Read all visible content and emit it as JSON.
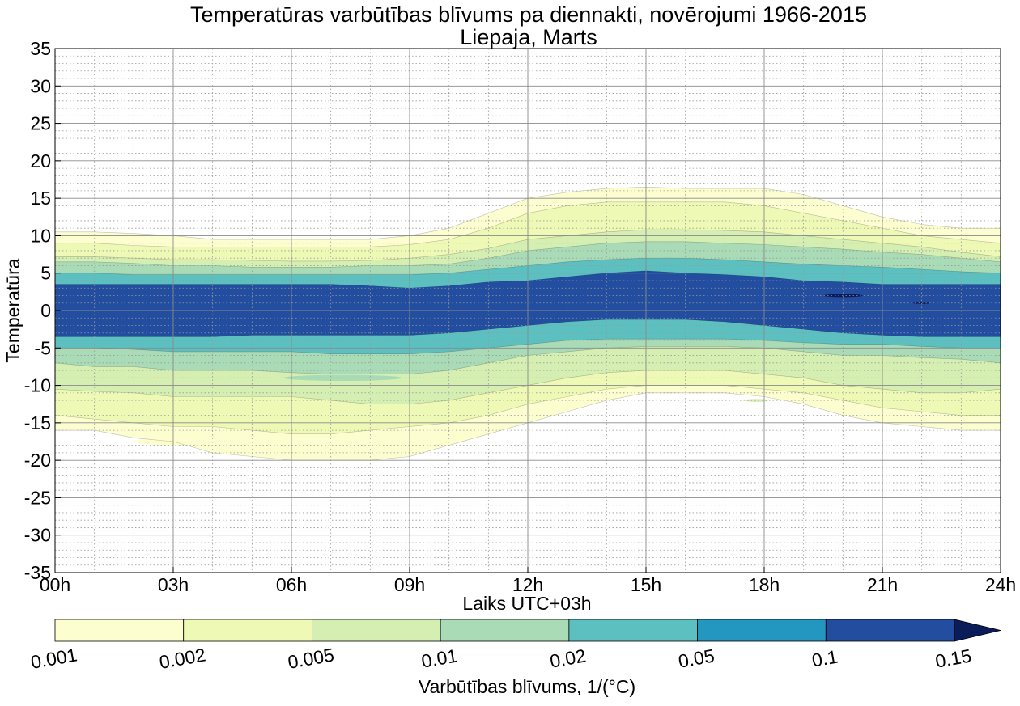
{
  "chart_data": {
    "type": "contour",
    "title": "Temperatūras varbūtības blīvums pa diennakti, novērojumi 1966-2015",
    "subtitle": "Liepaja, Marts",
    "xlabel": "Laiks UTC+03h",
    "ylabel": "Temperatūra",
    "xlim": [
      0,
      24
    ],
    "ylim": [
      -35,
      35
    ],
    "x_ticks": [
      0,
      3,
      6,
      9,
      12,
      15,
      18,
      21,
      24
    ],
    "x_tick_labels": [
      "00h",
      "03h",
      "06h",
      "09h",
      "12h",
      "15h",
      "18h",
      "21h",
      "24h"
    ],
    "y_ticks": [
      -35,
      -30,
      -25,
      -20,
      -15,
      -10,
      -5,
      0,
      5,
      10,
      15,
      20,
      25,
      30,
      35
    ],
    "y_tick_labels": [
      "-35",
      "-30",
      "-25",
      "-20",
      "-15",
      "-10",
      "-5",
      "0",
      "5",
      "10",
      "15",
      "20",
      "25",
      "30",
      "35"
    ],
    "grid": true,
    "colorbar": {
      "label": "Varbūtības blīvums, 1/(°C)",
      "levels": [
        0.001,
        0.002,
        0.005,
        0.01,
        0.02,
        0.05,
        0.1,
        0.15
      ],
      "tick_labels": [
        "0.001",
        "0.002",
        "0.005",
        "0.01",
        "0.02",
        "0.05",
        "0.1",
        "0.15"
      ],
      "colors": [
        "#fdfed0",
        "#eff9b6",
        "#d5eeb2",
        "#a9dbb6",
        "#5cbfc0",
        "#2397c0",
        "#234ea0",
        "#0a1d5a"
      ],
      "extend": "max",
      "placement": "bottom"
    },
    "hours": [
      0,
      1,
      2,
      3,
      4,
      5,
      6,
      7,
      8,
      9,
      10,
      11,
      12,
      13,
      14,
      15,
      16,
      17,
      18,
      19,
      20,
      21,
      22,
      23,
      24
    ],
    "bands": [
      {
        "level": 0.001,
        "upper": [
          10.5,
          10.5,
          10.3,
          10.0,
          9.5,
          9.5,
          9.5,
          9.5,
          9.5,
          10.0,
          11.0,
          13.0,
          15.0,
          15.8,
          16.3,
          16.5,
          16.3,
          16.3,
          16.3,
          15.5,
          14.0,
          12.5,
          11.5,
          11.0,
          11.0
        ],
        "lower": [
          -16.0,
          -16.0,
          -17.0,
          -17.5,
          -19.0,
          -19.5,
          -20.0,
          -20.0,
          -20.0,
          -19.5,
          -18.0,
          -16.5,
          -15.0,
          -13.5,
          -12.0,
          -11.0,
          -11.0,
          -11.0,
          -11.5,
          -12.5,
          -14.0,
          -15.0,
          -15.5,
          -16.0,
          -16.0
        ]
      },
      {
        "level": 0.002,
        "upper": [
          9.0,
          9.0,
          8.7,
          8.5,
          8.5,
          8.5,
          8.5,
          8.5,
          8.5,
          8.8,
          9.5,
          11.0,
          13.0,
          14.0,
          14.5,
          14.5,
          14.5,
          14.5,
          14.0,
          13.0,
          12.0,
          11.0,
          10.0,
          9.5,
          9.0
        ],
        "lower": [
          -14.0,
          -14.5,
          -15.0,
          -15.5,
          -15.5,
          -16.0,
          -16.5,
          -16.5,
          -16.0,
          -15.5,
          -15.0,
          -14.0,
          -12.5,
          -11.5,
          -10.5,
          -10.0,
          -10.0,
          -10.0,
          -10.5,
          -11.0,
          -12.0,
          -13.0,
          -13.5,
          -14.0,
          -14.0
        ]
      },
      {
        "level": 0.005,
        "upper": [
          7.2,
          7.2,
          7.0,
          6.8,
          6.8,
          6.7,
          6.6,
          6.6,
          6.7,
          7.0,
          7.5,
          8.3,
          9.5,
          10.0,
          10.5,
          10.8,
          10.8,
          10.7,
          10.5,
          10.0,
          9.5,
          9.0,
          8.5,
          7.8,
          7.2
        ],
        "lower": [
          -10.5,
          -10.8,
          -11.0,
          -11.5,
          -11.5,
          -11.5,
          -11.5,
          -12.0,
          -12.5,
          -12.5,
          -12.0,
          -11.0,
          -10.0,
          -9.0,
          -8.3,
          -8.0,
          -8.0,
          -8.0,
          -8.5,
          -9.0,
          -10.0,
          -10.5,
          -11.0,
          -11.0,
          -10.5
        ]
      },
      {
        "level": 0.01,
        "upper": [
          6.5,
          6.5,
          6.3,
          6.0,
          6.0,
          5.8,
          5.8,
          5.8,
          6.0,
          6.0,
          6.2,
          7.0,
          8.0,
          8.5,
          9.0,
          9.2,
          9.2,
          9.0,
          8.8,
          8.5,
          8.2,
          7.8,
          7.5,
          7.0,
          6.5
        ],
        "lower": [
          -7.0,
          -7.5,
          -7.5,
          -8.0,
          -8.0,
          -8.0,
          -8.3,
          -8.5,
          -8.5,
          -8.5,
          -8.0,
          -7.0,
          -6.0,
          -5.5,
          -5.0,
          -4.8,
          -4.8,
          -4.8,
          -5.0,
          -5.5,
          -6.0,
          -6.0,
          -6.3,
          -6.5,
          -7.0
        ]
      },
      {
        "level": 0.02,
        "upper": [
          5.0,
          5.0,
          4.8,
          4.8,
          4.8,
          4.8,
          4.8,
          4.8,
          4.8,
          4.8,
          5.0,
          5.5,
          6.0,
          6.5,
          6.8,
          7.0,
          7.0,
          6.8,
          6.5,
          6.2,
          6.0,
          5.8,
          5.5,
          5.2,
          5.0
        ],
        "lower": [
          -5.0,
          -5.0,
          -5.2,
          -5.5,
          -5.5,
          -5.5,
          -5.5,
          -5.8,
          -5.8,
          -5.8,
          -5.5,
          -5.0,
          -4.5,
          -4.0,
          -3.8,
          -3.8,
          -3.8,
          -3.8,
          -4.0,
          -4.3,
          -4.5,
          -4.5,
          -4.8,
          -5.0,
          -5.0
        ]
      },
      {
        "level": 0.05,
        "upper": [
          3.5,
          3.5,
          3.5,
          3.5,
          3.5,
          3.5,
          3.5,
          3.5,
          3.3,
          3.0,
          3.3,
          3.8,
          4.0,
          4.5,
          5.0,
          5.3,
          5.0,
          4.8,
          4.5,
          4.0,
          3.8,
          3.5,
          3.5,
          3.5,
          3.5
        ],
        "lower": [
          -3.5,
          -3.5,
          -3.5,
          -3.5,
          -3.5,
          -3.3,
          -3.3,
          -3.3,
          -3.3,
          -3.3,
          -3.0,
          -2.5,
          -2.0,
          -1.5,
          -1.2,
          -1.2,
          -1.2,
          -1.5,
          -2.0,
          -2.5,
          -3.0,
          -3.3,
          -3.5,
          -3.5,
          -3.5
        ]
      }
    ],
    "patches": [
      {
        "level": 0.15,
        "x": 20.0,
        "y": 2.0,
        "rx": 0.5,
        "ry": 0.2
      },
      {
        "level": 0.15,
        "x": 22.0,
        "y": 1.0,
        "rx": 0.22,
        "ry": 0.12
      },
      {
        "level": 0.002,
        "x": 15.0,
        "y": 12.0,
        "rx": 1.1,
        "ry": 0.45
      },
      {
        "level": 0.002,
        "x": 13.2,
        "y": 13.0,
        "rx": 0.35,
        "ry": 0.2
      },
      {
        "level": 0.01,
        "x": 7.3,
        "y": -9.0,
        "rx": 1.5,
        "ry": 0.4
      },
      {
        "level": 0.005,
        "x": 17.8,
        "y": -12.0,
        "rx": 0.3,
        "ry": 0.2
      },
      {
        "level": 0.002,
        "x": 5.2,
        "y": -15.2,
        "rx": 1.4,
        "ry": 0.35
      },
      {
        "level": 0.001,
        "x": 3.5,
        "y": -17.5,
        "rx": 1.5,
        "ry": 0.6
      }
    ]
  }
}
